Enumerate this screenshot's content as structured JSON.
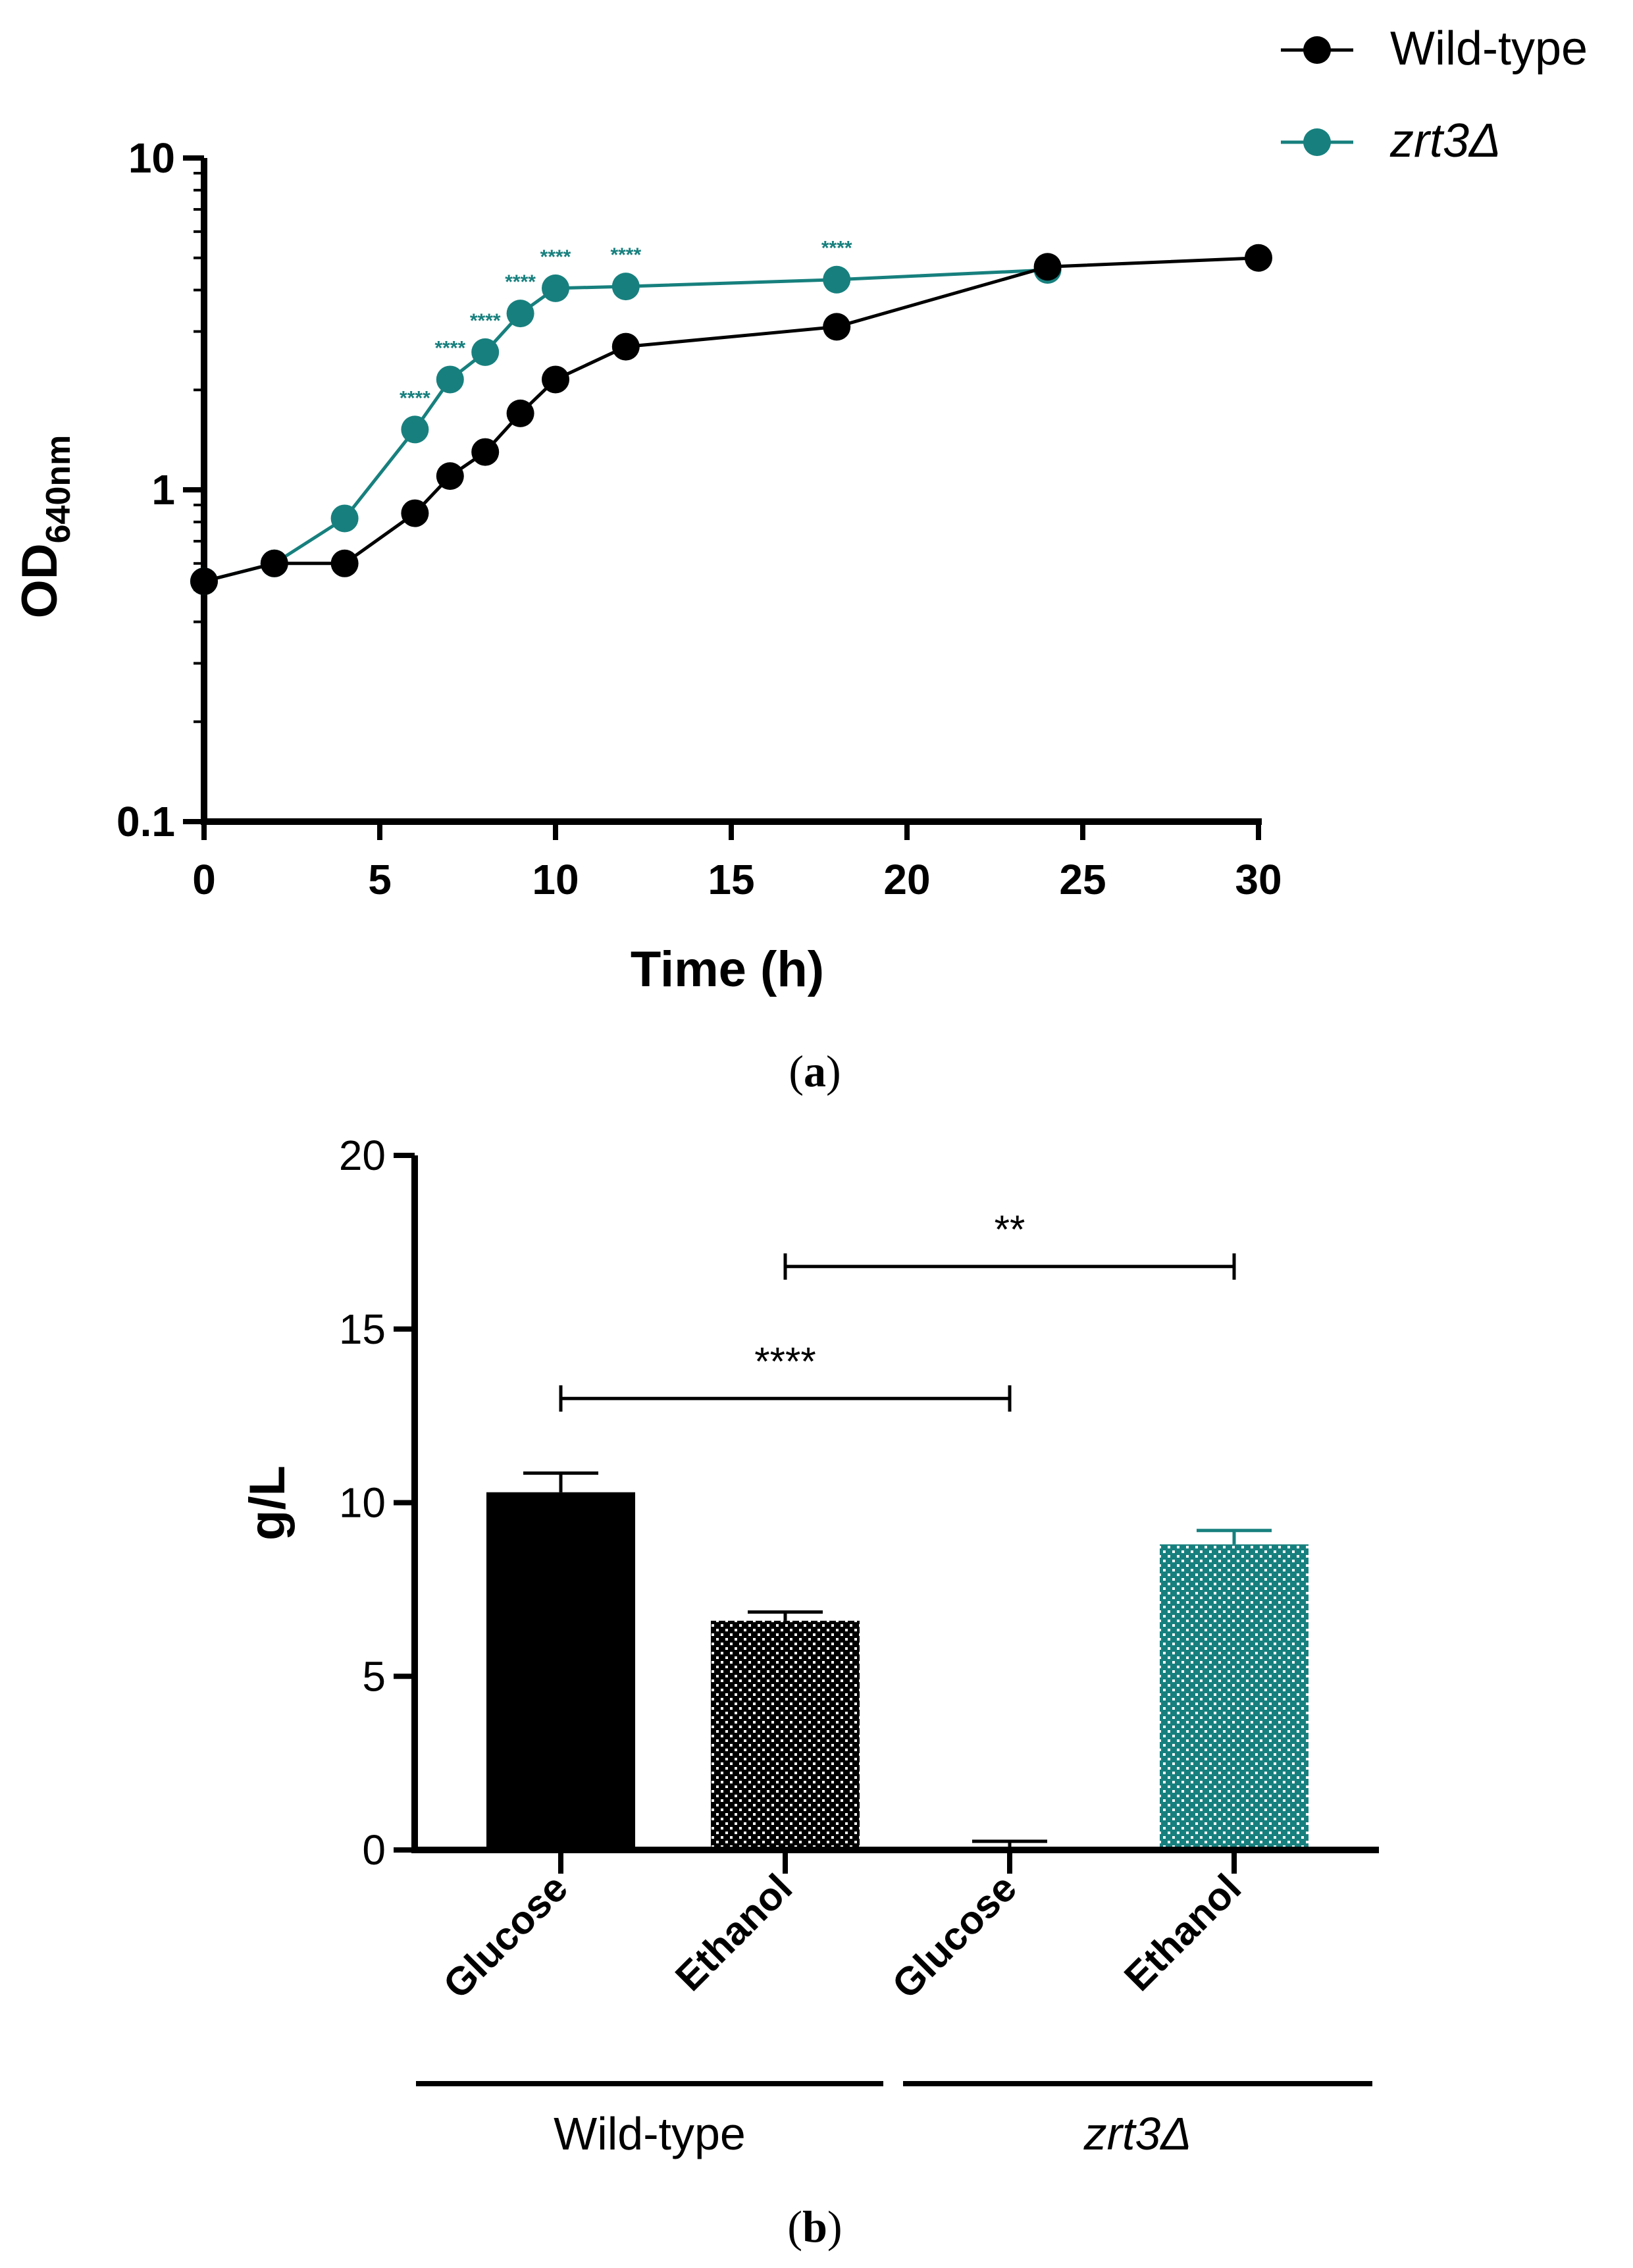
{
  "colors": {
    "wild_type": "#000000",
    "zrt3": "#17807e",
    "axis": "#000000"
  },
  "panel_a": {
    "label_open": "(",
    "label_letter": "a",
    "label_close": ")"
  },
  "panel_b": {
    "label_open": "(",
    "label_letter": "b",
    "label_close": ")"
  },
  "chart_data": [
    {
      "type": "line",
      "panel": "a",
      "xlabel": "Time (h)",
      "ylabel_main": "OD",
      "ylabel_sub": "640nm",
      "yscale": "log",
      "xlim": [
        0,
        30
      ],
      "ylim": [
        0.1,
        10
      ],
      "x_ticks": [
        0,
        5,
        10,
        15,
        20,
        25,
        30
      ],
      "x_tick_labels": [
        "0",
        "5",
        "10",
        "15",
        "20",
        "25",
        "30"
      ],
      "y_ticks": [
        0.1,
        1,
        10
      ],
      "y_tick_labels": [
        "0.1",
        "1",
        "10"
      ],
      "grid": false,
      "legend_position": "top-right",
      "series": [
        {
          "name": "Wild-type",
          "color": "#000000",
          "x": [
            0,
            2,
            4,
            6,
            7,
            8,
            9,
            10,
            12,
            18,
            24,
            30
          ],
          "y": [
            0.53,
            0.6,
            0.6,
            0.85,
            1.1,
            1.3,
            1.7,
            2.15,
            2.7,
            3.1,
            4.7,
            5.0
          ]
        },
        {
          "name": "zrt3Δ",
          "color": "#17807e",
          "x": [
            0,
            2,
            4,
            6,
            7,
            8,
            9,
            10,
            12,
            18,
            24
          ],
          "y": [
            0.53,
            0.6,
            0.82,
            1.52,
            2.15,
            2.6,
            3.4,
            4.05,
            4.1,
            4.3,
            4.6
          ]
        }
      ],
      "annotations": [
        {
          "x": 6,
          "text": "****"
        },
        {
          "x": 7,
          "text": "****"
        },
        {
          "x": 8,
          "text": "****"
        },
        {
          "x": 9,
          "text": "****"
        },
        {
          "x": 10,
          "text": "****"
        },
        {
          "x": 12,
          "text": "****"
        },
        {
          "x": 18,
          "text": "****"
        }
      ]
    },
    {
      "type": "bar",
      "panel": "b",
      "ylabel": "g/L",
      "ylim": [
        0,
        20
      ],
      "y_ticks": [
        0,
        5,
        10,
        15,
        20
      ],
      "y_tick_labels": [
        "0",
        "5",
        "10",
        "15",
        "20"
      ],
      "grid": false,
      "categories": [
        "Glucose",
        "Ethanol",
        "Glucose",
        "Ethanol"
      ],
      "groups": [
        {
          "name": "Wild-type",
          "italic": false,
          "categories": [
            0,
            1
          ]
        },
        {
          "name": "zrt3Δ",
          "italic": true,
          "categories": [
            2,
            3
          ]
        }
      ],
      "values": [
        10.3,
        6.6,
        0.0,
        8.8
      ],
      "errors": [
        0.55,
        0.25,
        0.25,
        0.4
      ],
      "bar_styles": [
        "solid-black",
        "dotted-black",
        "none",
        "dotted-teal"
      ],
      "significance": [
        {
          "from": 0,
          "to": 2,
          "y": 13.0,
          "text": "****"
        },
        {
          "from": 1,
          "to": 3,
          "y": 16.8,
          "text": "**"
        }
      ]
    }
  ]
}
